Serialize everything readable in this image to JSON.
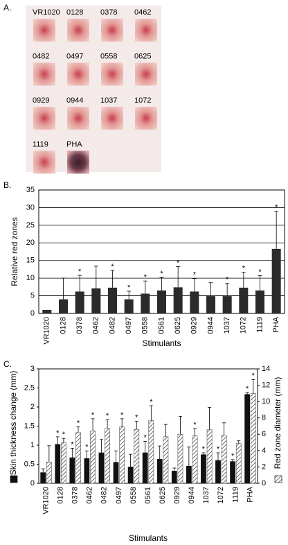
{
  "panel_a": {
    "label": "A.",
    "images": [
      "VR1020",
      "0128",
      "0378",
      "0462",
      "0482",
      "0497",
      "0558",
      "0625",
      "0929",
      "0944",
      "1037",
      "1072",
      "1119",
      "PHA"
    ]
  },
  "chart_data": [
    {
      "type": "bar",
      "panel_label": "B.",
      "ylabel": "Relative red zones",
      "xlabel": "Stimulants",
      "categories": [
        "VR1020",
        "0128",
        "0378",
        "0462",
        "0482",
        "0497",
        "0558",
        "0561",
        "0625",
        "0929",
        "0944",
        "1037",
        "1072",
        "1119",
        "PHA"
      ],
      "values": [
        1,
        4,
        6.2,
        7.1,
        7.3,
        4,
        5.6,
        6.5,
        7.4,
        6.2,
        4.9,
        4.9,
        7.3,
        6.5,
        18.3
      ],
      "errors": [
        null,
        6,
        4.6,
        6.3,
        4.9,
        2.3,
        3.6,
        3.7,
        5.9,
        3.7,
        3.8,
        3.6,
        4.4,
        4.2,
        10.7
      ],
      "markers": [
        null,
        null,
        "*",
        null,
        "*",
        "*",
        "*",
        "*",
        "*",
        "*",
        null,
        "*",
        "*",
        "*",
        "*"
      ],
      "color": "#2b2b2b",
      "ylim": [
        0,
        35
      ],
      "yticks": [
        0,
        5,
        10,
        15,
        20,
        25,
        30,
        35
      ],
      "grid": true
    },
    {
      "type": "grouped_bar",
      "panel_label": "C.",
      "xlabel": "Stimulants",
      "categories": [
        "VR1020",
        "0128",
        "0378",
        "0462",
        "0482",
        "0497",
        "0558",
        "0561",
        "0625",
        "0929",
        "0944",
        "1037",
        "1072",
        "1119",
        "PHA"
      ],
      "series": [
        {
          "name": "Skin thickness change (mm)",
          "color": "#111111",
          "pattern": "solid",
          "values": [
            0.28,
            1.02,
            0.67,
            0.65,
            0.8,
            0.55,
            0.43,
            0.8,
            0.63,
            0.32,
            0.45,
            0.75,
            0.6,
            0.57,
            2.33
          ],
          "errors": [
            0.1,
            0.2,
            0.25,
            0.2,
            0.35,
            0.3,
            0.33,
            0.3,
            0.35,
            0.08,
            0.5,
            0.05,
            0.2,
            0.05,
            0.05
          ],
          "markers": [
            null,
            "*",
            "*",
            "*",
            null,
            null,
            null,
            "*",
            null,
            null,
            null,
            "*",
            "*",
            "*",
            "*"
          ]
        },
        {
          "name": "Red zone diameter (mm)",
          "color": "#555555",
          "pattern": "hatch",
          "axis": "y2",
          "values": [
            2.6,
            5,
            6.2,
            6.4,
            6.7,
            6.9,
            6.6,
            7.7,
            5.7,
            6,
            5.8,
            6.6,
            5.9,
            4.9,
            11
          ],
          "errors": [
            2,
            0.5,
            0.7,
            1.5,
            1.1,
            1,
            1,
            1.8,
            1.5,
            2.2,
            0.9,
            2.7,
            1.5,
            0.3,
            1.7
          ],
          "markers": [
            null,
            "*",
            "*",
            "*",
            "*",
            "*",
            "*",
            "*",
            null,
            null,
            "*",
            null,
            null,
            null,
            "*"
          ]
        }
      ],
      "ylim": [
        0,
        3
      ],
      "yticks": [
        0,
        0.5,
        1,
        1.5,
        2,
        2.5,
        3
      ],
      "y2lim": [
        0,
        14
      ],
      "y2ticks": [
        0,
        2,
        4,
        6,
        8,
        10,
        12,
        14
      ],
      "grid": false
    }
  ]
}
